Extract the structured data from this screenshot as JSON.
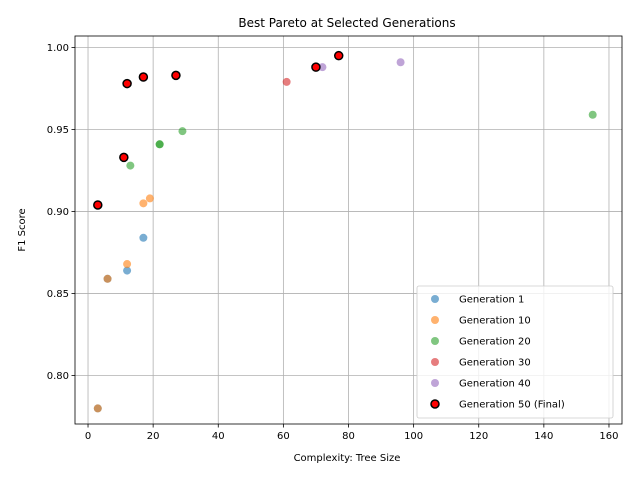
{
  "chart_data": {
    "type": "scatter",
    "title": "Best Pareto at Selected Generations",
    "xlabel": "Complexity: Tree Size",
    "ylabel": "F1 Score",
    "xlim": [
      -4,
      164
    ],
    "ylim": [
      0.7705,
      1.007
    ],
    "xticks": [
      0,
      20,
      40,
      60,
      80,
      100,
      120,
      140,
      160
    ],
    "yticks": [
      0.8,
      0.85,
      0.9,
      0.95,
      1.0
    ],
    "grid": true,
    "legend_position": "lower-right",
    "series": [
      {
        "name": "Generation 1",
        "color": "#1f77b4",
        "x": [
          3,
          6,
          12,
          17
        ],
        "y": [
          0.78,
          0.859,
          0.864,
          0.884
        ]
      },
      {
        "name": "Generation 10",
        "color": "#ff7f0e",
        "x": [
          3,
          6,
          12,
          17,
          19
        ],
        "y": [
          0.78,
          0.859,
          0.868,
          0.905,
          0.908
        ]
      },
      {
        "name": "Generation 20",
        "color": "#2ca02c",
        "x": [
          13,
          22,
          22,
          29,
          155
        ],
        "y": [
          0.928,
          0.941,
          0.941,
          0.949,
          0.959
        ]
      },
      {
        "name": "Generation 30",
        "color": "#d62728",
        "x": [
          61
        ],
        "y": [
          0.979
        ]
      },
      {
        "name": "Generation 40",
        "color": "#9467bd",
        "x": [
          72,
          96
        ],
        "y": [
          0.988,
          0.991
        ]
      },
      {
        "name": "Generation 50 (Final)",
        "color": "#ff0000",
        "edge": "#000000",
        "x": [
          3,
          11,
          12,
          17,
          27,
          70,
          77
        ],
        "y": [
          0.904,
          0.933,
          0.978,
          0.982,
          0.983,
          0.988,
          0.995
        ]
      }
    ]
  }
}
